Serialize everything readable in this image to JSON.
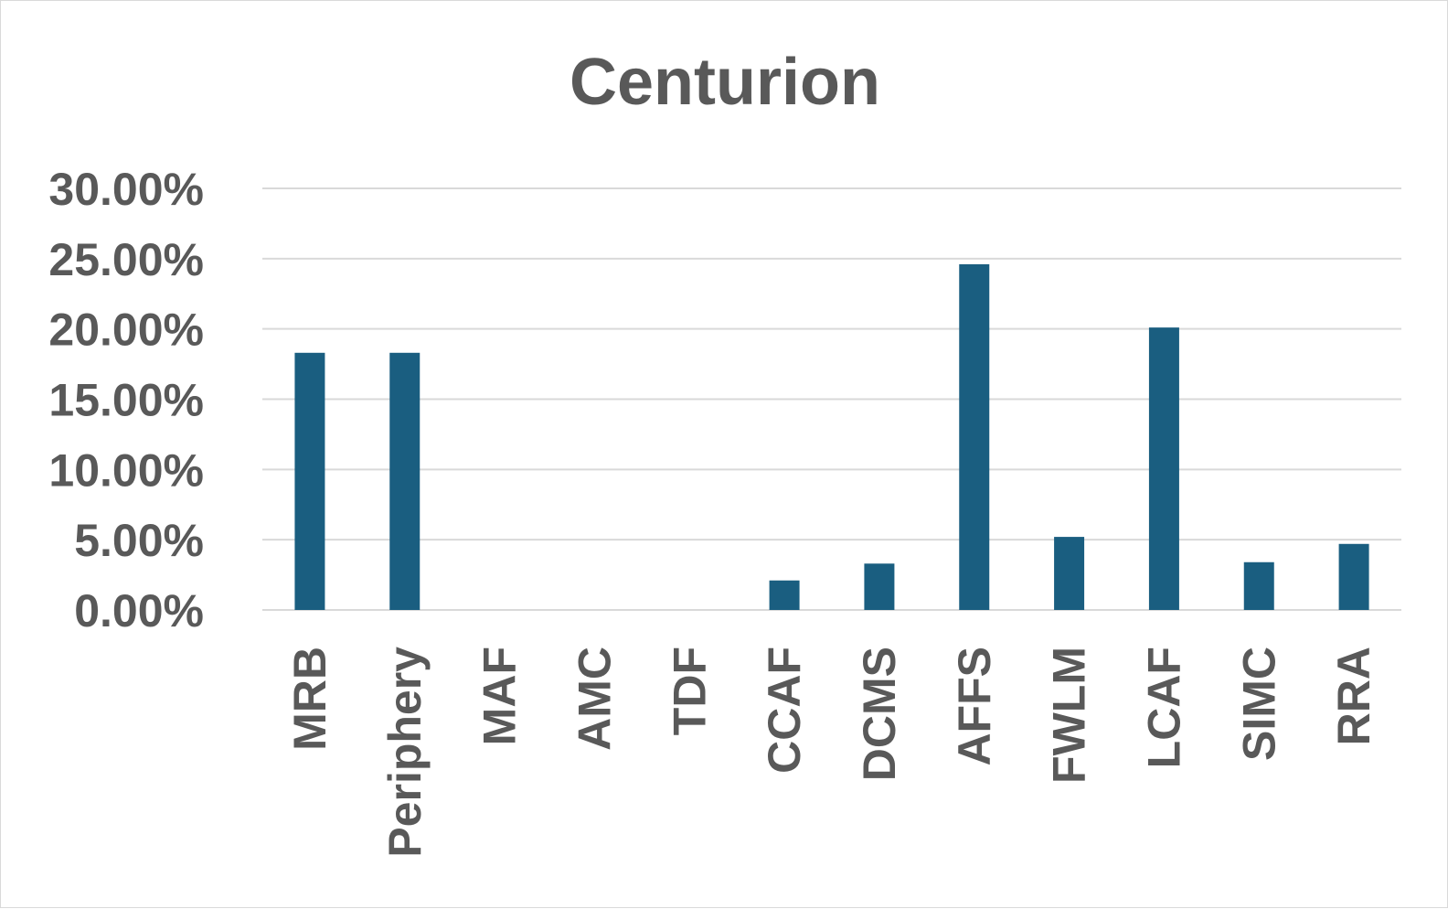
{
  "chart_data": {
    "type": "bar",
    "title": "Centurion",
    "xlabel": "",
    "ylabel": "",
    "ylim": [
      0,
      0.3
    ],
    "y_tick_values": [
      0,
      0.05,
      0.1,
      0.15,
      0.2,
      0.25,
      0.3
    ],
    "y_tick_labels": [
      "0.00%",
      "5.00%",
      "10.00%",
      "15.00%",
      "20.00%",
      "25.00%",
      "30.00%"
    ],
    "categories": [
      "MRB",
      "Periphery",
      "MAF",
      "AMC",
      "TDF",
      "CCAF",
      "DCMS",
      "AFFS",
      "FWLM",
      "LCAF",
      "SIMC",
      "RRA"
    ],
    "values": [
      0.183,
      0.183,
      0,
      0,
      0,
      0.021,
      0.033,
      0.246,
      0.052,
      0.201,
      0.034,
      0.047
    ],
    "grid": true,
    "legend": "none",
    "bar_color": "#1a5e80",
    "grid_color": "#d9d9d9",
    "text_color": "#595959"
  }
}
